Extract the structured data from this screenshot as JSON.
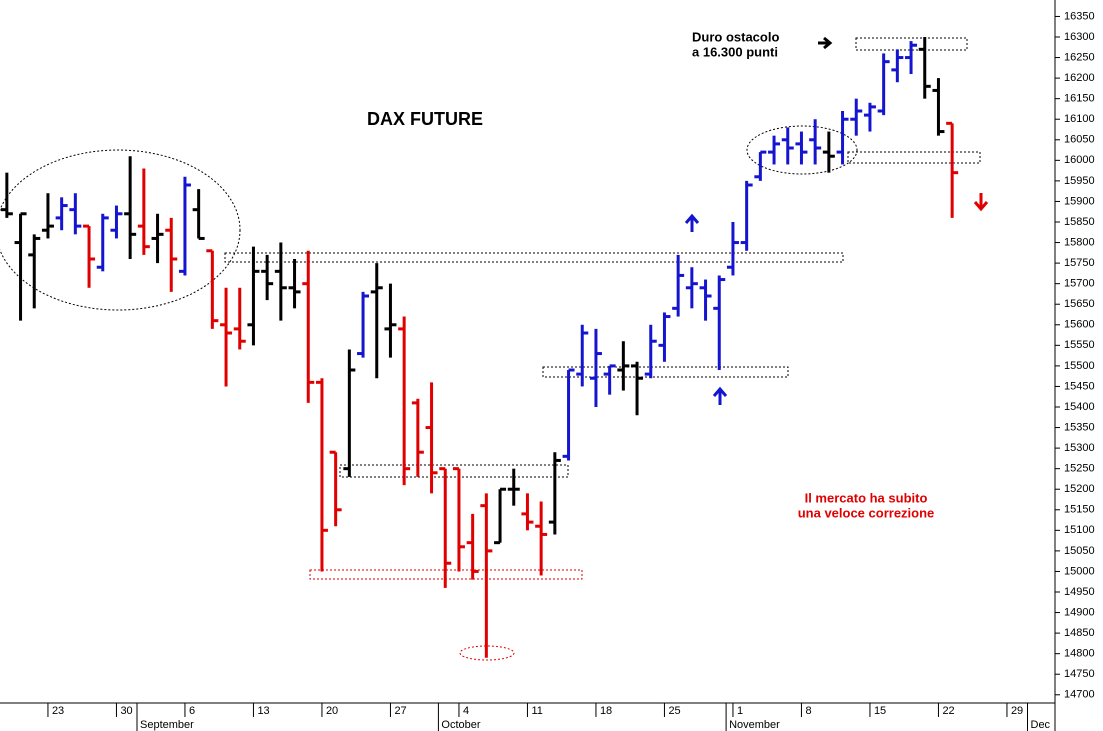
{
  "chart_data": {
    "type": "ohlc",
    "title": "DAX FUTURE",
    "annotations": [
      "Duro ostacolo",
      "a 16.300 punti",
      "Il mercato ha subito",
      "una veloce correzione"
    ],
    "categories": [
      null,
      null,
      null,
      "23",
      null,
      null,
      null,
      null,
      "30",
      null,
      null,
      null,
      null,
      "6",
      null,
      null,
      null,
      null,
      "13",
      null,
      null,
      null,
      null,
      "20",
      null,
      null,
      null,
      null,
      "27",
      null,
      null,
      null,
      null,
      "4",
      null,
      null,
      null,
      null,
      "11",
      null,
      null,
      null,
      null,
      "18",
      null,
      null,
      null,
      null,
      "25",
      null,
      null,
      null,
      null,
      "1",
      null,
      null,
      null,
      null,
      "8",
      null,
      null,
      null,
      null,
      "15",
      null,
      null,
      null,
      null,
      "22",
      null,
      null,
      null,
      null,
      "29",
      null,
      null
    ],
    "months": [
      null,
      null,
      null,
      null,
      null,
      null,
      null,
      null,
      null,
      null,
      "September",
      null,
      null,
      null,
      null,
      null,
      null,
      null,
      null,
      null,
      null,
      null,
      null,
      null,
      null,
      null,
      null,
      null,
      null,
      null,
      null,
      null,
      "October",
      null,
      null,
      null,
      null,
      null,
      null,
      null,
      null,
      null,
      null,
      null,
      null,
      null,
      null,
      null,
      null,
      null,
      null,
      null,
      null,
      "November",
      null,
      null,
      null,
      null,
      null,
      null,
      null,
      null,
      null,
      null,
      null,
      null,
      null,
      null,
      null,
      null,
      null,
      null,
      null,
      null,
      null,
      "Dec"
    ],
    "open": [
      15880,
      15800,
      15770,
      15830,
      15860,
      15880,
      15840,
      15740,
      15830,
      15870,
      15840,
      15810,
      15830,
      15730,
      15880,
      15780,
      15600,
      15590,
      15600,
      15730,
      15730,
      15690,
      15700,
      15460,
      15290,
      15250,
      15530,
      15680,
      15590,
      15590,
      15410,
      15350,
      15250,
      15250,
      15070,
      15160,
      15070,
      15200,
      15140,
      15110,
      15120,
      15280,
      15480,
      15470,
      15480,
      15490,
      15500,
      15480,
      15550,
      15640,
      15690,
      15690,
      15640,
      15740,
      15800,
      15960,
      16020,
      16050,
      16040,
      16050,
      16020,
      16020,
      16100,
      16110,
      16120,
      16220,
      16250,
      16270,
      16170,
      16090,
      null,
      null,
      null,
      null,
      null,
      null
    ],
    "high": [
      15970,
      15870,
      15820,
      15920,
      15910,
      15920,
      15840,
      15870,
      15890,
      16010,
      15980,
      15870,
      15860,
      15960,
      15930,
      15780,
      15690,
      15690,
      15790,
      15770,
      15800,
      15760,
      15780,
      15470,
      15290,
      15540,
      15680,
      15750,
      15700,
      15620,
      15420,
      15460,
      15250,
      15250,
      15140,
      15190,
      15200,
      15250,
      15190,
      15170,
      15290,
      15490,
      15600,
      15590,
      15500,
      15560,
      15510,
      15600,
      15630,
      15770,
      15740,
      15710,
      15720,
      15850,
      15950,
      16020,
      16060,
      16080,
      16070,
      16100,
      16070,
      16120,
      16150,
      16140,
      16260,
      16270,
      16290,
      16300,
      16200,
      16090,
      null,
      null,
      null,
      null,
      null,
      null
    ],
    "low": [
      15860,
      15610,
      15640,
      15810,
      15830,
      15820,
      15690,
      15730,
      15810,
      15760,
      15770,
      15750,
      15680,
      15720,
      15810,
      15590,
      15450,
      15540,
      15550,
      15660,
      15610,
      15640,
      15410,
      15000,
      15110,
      15230,
      15520,
      15470,
      15520,
      15210,
      15230,
      15190,
      14960,
      15000,
      14980,
      14790,
      15070,
      15160,
      15100,
      14990,
      15090,
      15270,
      15450,
      15400,
      15430,
      15440,
      15380,
      15470,
      15510,
      15620,
      15640,
      15610,
      15490,
      15720,
      15780,
      15950,
      15990,
      15990,
      15990,
      15990,
      15970,
      15990,
      16060,
      16070,
      16110,
      16190,
      16210,
      16150,
      16060,
      15860,
      null,
      null,
      null,
      null,
      null,
      null
    ],
    "close": [
      15870,
      15870,
      15810,
      15840,
      15890,
      15840,
      15760,
      15860,
      15870,
      15820,
      15790,
      15820,
      15760,
      15940,
      15810,
      15610,
      15580,
      15560,
      15730,
      15700,
      15690,
      15680,
      15460,
      15100,
      15150,
      15490,
      15670,
      15690,
      15600,
      15250,
      15290,
      15240,
      15020,
      15060,
      15000,
      15050,
      15200,
      15200,
      15120,
      15090,
      15270,
      15490,
      15580,
      15530,
      15500,
      15500,
      15470,
      15560,
      15620,
      15720,
      15700,
      15670,
      15710,
      15800,
      15940,
      16020,
      16040,
      16030,
      16020,
      16030,
      16010,
      16100,
      16120,
      16130,
      16240,
      16250,
      16280,
      16180,
      16070,
      15970,
      null,
      null,
      null,
      null,
      null,
      null
    ],
    "colors": [
      "#000000",
      "#000000",
      "#000000",
      "#000000",
      "#1515d0",
      "#1515d0",
      "#e00000",
      "#1515d0",
      "#1515d0",
      "#000000",
      "#e00000",
      "#000000",
      "#e00000",
      "#1515d0",
      "#000000",
      "#e00000",
      "#e00000",
      "#e00000",
      "#000000",
      "#000000",
      "#000000",
      "#000000",
      "#e00000",
      "#e00000",
      "#e00000",
      "#000000",
      "#1515d0",
      "#000000",
      "#000000",
      "#e00000",
      "#e00000",
      "#e00000",
      "#e00000",
      "#e00000",
      "#e00000",
      "#e00000",
      "#000000",
      "#000000",
      "#e00000",
      "#e00000",
      "#000000",
      "#1515d0",
      "#1515d0",
      "#1515d0",
      "#1515d0",
      "#000000",
      "#000000",
      "#1515d0",
      "#1515d0",
      "#1515d0",
      "#1515d0",
      "#1515d0",
      "#1515d0",
      "#1515d0",
      "#1515d0",
      "#1515d0",
      "#1515d0",
      "#1515d0",
      "#1515d0",
      "#1515d0",
      "#000000",
      "#1515d0",
      "#1515d0",
      "#1515d0",
      "#1515d0",
      "#1515d0",
      "#1515d0",
      "#000000",
      "#000000",
      "#e00000",
      "#000000",
      "#000000",
      "#000000",
      "#000000",
      "#000000",
      "#000000"
    ],
    "ylim": [
      14680,
      16390
    ],
    "yticks": [
      14700,
      14750,
      14800,
      14850,
      14900,
      14950,
      15000,
      15050,
      15100,
      15150,
      15200,
      15250,
      15300,
      15350,
      15400,
      15450,
      15500,
      15550,
      15600,
      15650,
      15700,
      15750,
      15800,
      15850,
      15900,
      15950,
      16000,
      16050,
      16100,
      16150,
      16200,
      16250,
      16300,
      16350
    ]
  }
}
